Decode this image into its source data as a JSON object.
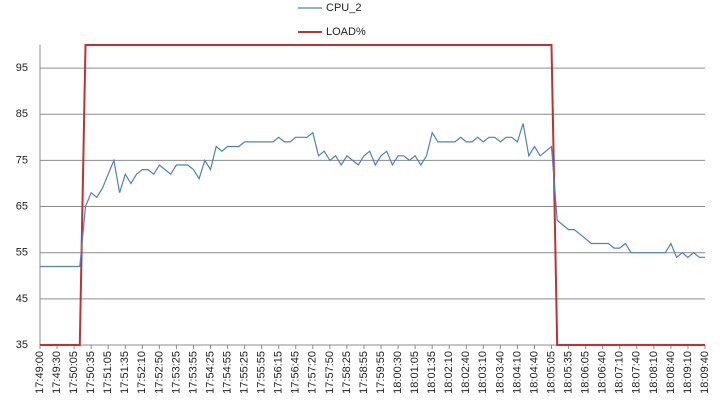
{
  "chart_data": {
    "type": "line",
    "categories": [
      "17:49:00",
      null,
      null,
      "17:49:30",
      null,
      null,
      "17:50:05",
      null,
      null,
      "17:50:35",
      null,
      null,
      "17:51:05",
      null,
      null,
      "17:51:35",
      null,
      null,
      "17:52:10",
      null,
      null,
      "17:52:50",
      null,
      null,
      "17:53:25",
      null,
      null,
      "17:53:55",
      null,
      null,
      "17:54:25",
      null,
      null,
      "17:54:55",
      null,
      null,
      "17:55:25",
      null,
      null,
      "17:55:55",
      null,
      null,
      "17:56:15",
      null,
      null,
      "17:56:45",
      null,
      null,
      "17:57:20",
      null,
      null,
      "17:57:50",
      null,
      null,
      "17:58:25",
      null,
      null,
      "17:58:55",
      null,
      null,
      "17:59:55",
      null,
      null,
      "18:00:30",
      null,
      null,
      "18:01:05",
      null,
      null,
      "18:01:35",
      null,
      null,
      "18:02:10",
      null,
      null,
      "18:02:40",
      null,
      null,
      "18:03:10",
      null,
      null,
      "18:03:40",
      null,
      null,
      "18:04:10",
      null,
      null,
      "18:04:40",
      null,
      null,
      "18:05:05",
      null,
      null,
      "18:05:35",
      null,
      null,
      "18:06:05",
      null,
      null,
      "18:06:40",
      null,
      null,
      "18:07:10",
      null,
      null,
      "18:07:40",
      null,
      null,
      "18:08:10",
      null,
      null,
      "18:08:40",
      null,
      null,
      "18:09:10",
      null,
      null,
      "18:09:40"
    ],
    "series": [
      {
        "name": "CPU_2",
        "color": "#4f81bd",
        "values": [
          52,
          52,
          52,
          52,
          52,
          52,
          52,
          52,
          65,
          68,
          67,
          69,
          72,
          75,
          68,
          72,
          70,
          72,
          73,
          73,
          72,
          74,
          73,
          72,
          74,
          74,
          74,
          73,
          71,
          75,
          73,
          78,
          77,
          78,
          78,
          78,
          79,
          79,
          79,
          79,
          79,
          79,
          80,
          79,
          79,
          80,
          80,
          80,
          81,
          76,
          77,
          75,
          76,
          74,
          76,
          75,
          74,
          76,
          77,
          74,
          76,
          77,
          74,
          76,
          76,
          75,
          76,
          74,
          76,
          81,
          79,
          79,
          79,
          79,
          80,
          79,
          79,
          80,
          79,
          80,
          80,
          79,
          80,
          80,
          79,
          83,
          76,
          78,
          76,
          77,
          78,
          62,
          61,
          60,
          60,
          59,
          58,
          57,
          57,
          57,
          57,
          56,
          56,
          57,
          55,
          55,
          55,
          55,
          55,
          55,
          55,
          57,
          54,
          55,
          54,
          55,
          54,
          54
        ]
      },
      {
        "name": "LOAD%",
        "color": "#c0312f",
        "values": [
          35,
          35,
          35,
          35,
          35,
          35,
          35,
          35,
          100,
          100,
          100,
          100,
          100,
          100,
          100,
          100,
          100,
          100,
          100,
          100,
          100,
          100,
          100,
          100,
          100,
          100,
          100,
          100,
          100,
          100,
          100,
          100,
          100,
          100,
          100,
          100,
          100,
          100,
          100,
          100,
          100,
          100,
          100,
          100,
          100,
          100,
          100,
          100,
          100,
          100,
          100,
          100,
          100,
          100,
          100,
          100,
          100,
          100,
          100,
          100,
          100,
          100,
          100,
          100,
          100,
          100,
          100,
          100,
          100,
          100,
          100,
          100,
          100,
          100,
          100,
          100,
          100,
          100,
          100,
          100,
          100,
          100,
          100,
          100,
          100,
          100,
          100,
          100,
          100,
          100,
          100,
          35,
          35,
          35,
          35,
          35,
          35,
          35,
          35,
          35,
          35,
          35,
          35,
          35,
          35,
          35,
          35,
          35,
          35,
          35,
          35,
          35,
          35,
          35,
          35,
          35,
          35,
          35
        ]
      }
    ],
    "ylim": [
      35,
      100
    ],
    "yticks": [
      35,
      45,
      55,
      65,
      75,
      85,
      95
    ],
    "grid": true
  }
}
